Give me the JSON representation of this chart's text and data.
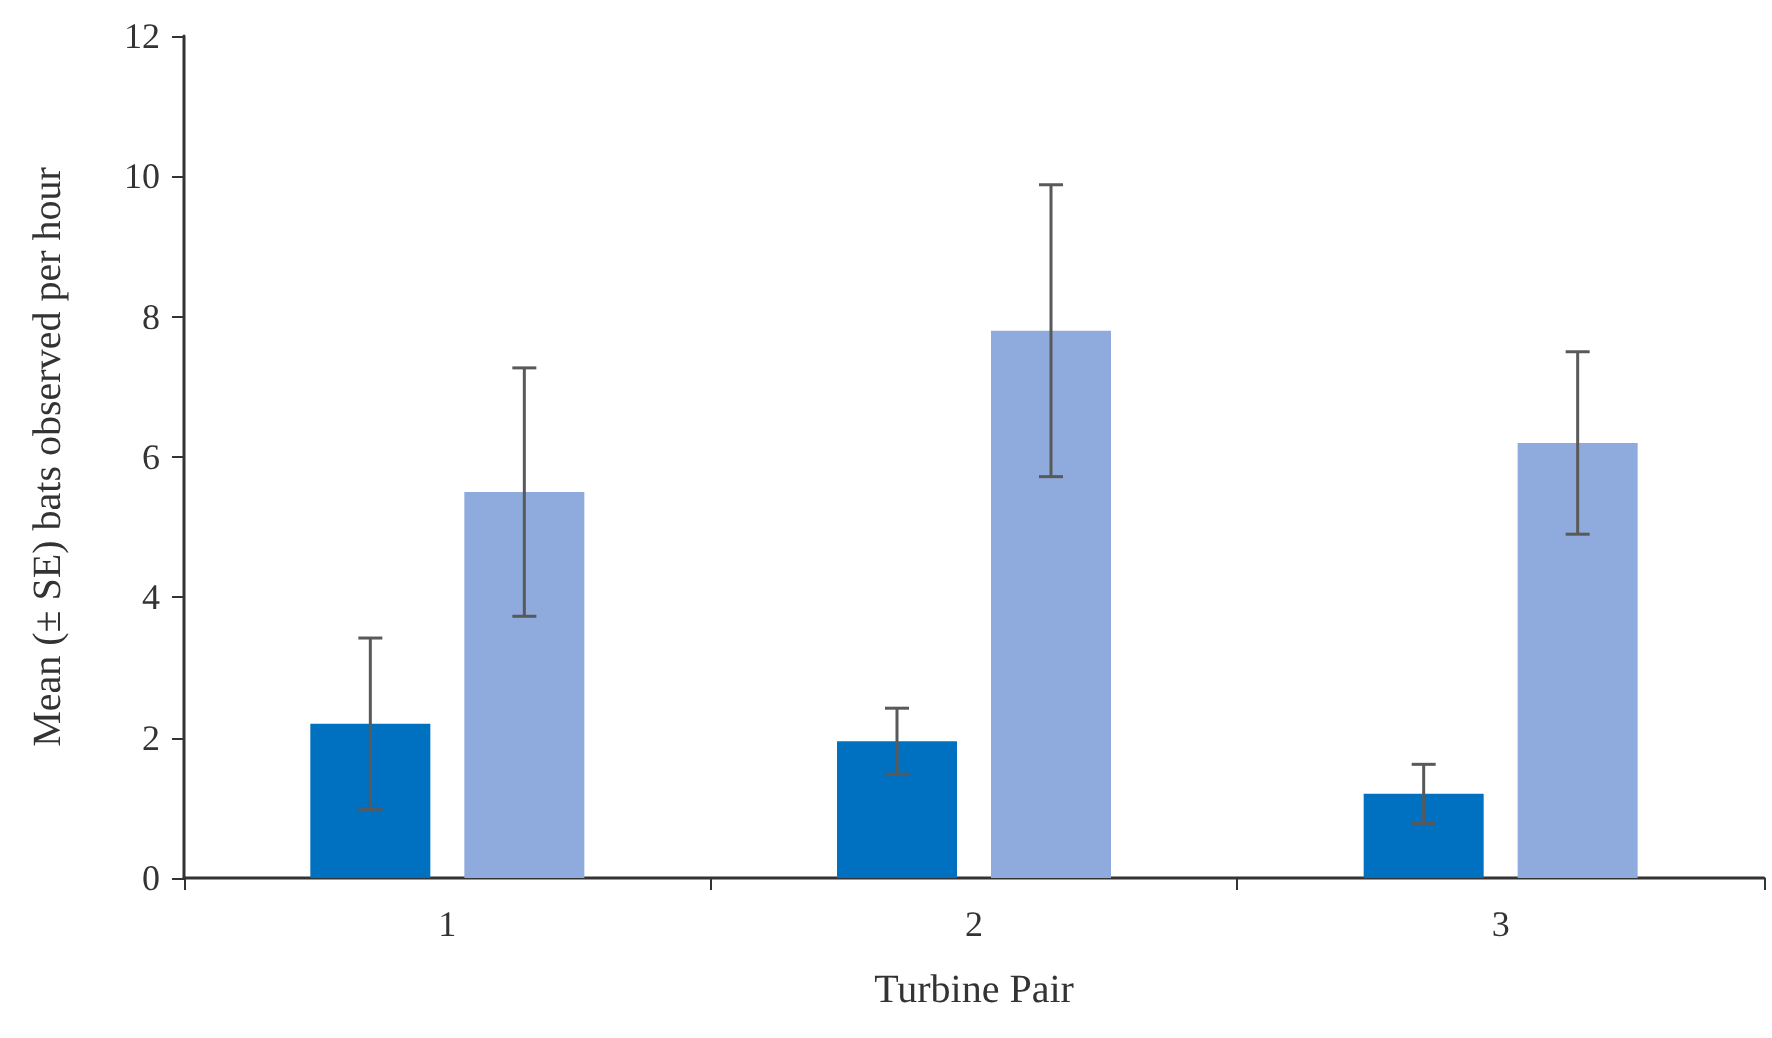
{
  "chart_data": {
    "type": "bar",
    "xlabel": "Turbine Pair",
    "ylabel": "Mean (± SE) bats observed per hour",
    "categories": [
      "1",
      "2",
      "3"
    ],
    "series": [
      {
        "color": "#0070c0",
        "values": [
          2.2,
          1.95,
          1.2
        ],
        "errors": [
          1.22,
          0.47,
          0.42
        ]
      },
      {
        "color": "#8faadc",
        "values": [
          5.5,
          7.8,
          6.2
        ],
        "errors": [
          1.77,
          2.08,
          1.3
        ]
      }
    ],
    "ylim": [
      0,
      12
    ],
    "yticks": [
      0,
      2,
      4,
      6,
      8,
      10,
      12
    ],
    "grid": false
  }
}
